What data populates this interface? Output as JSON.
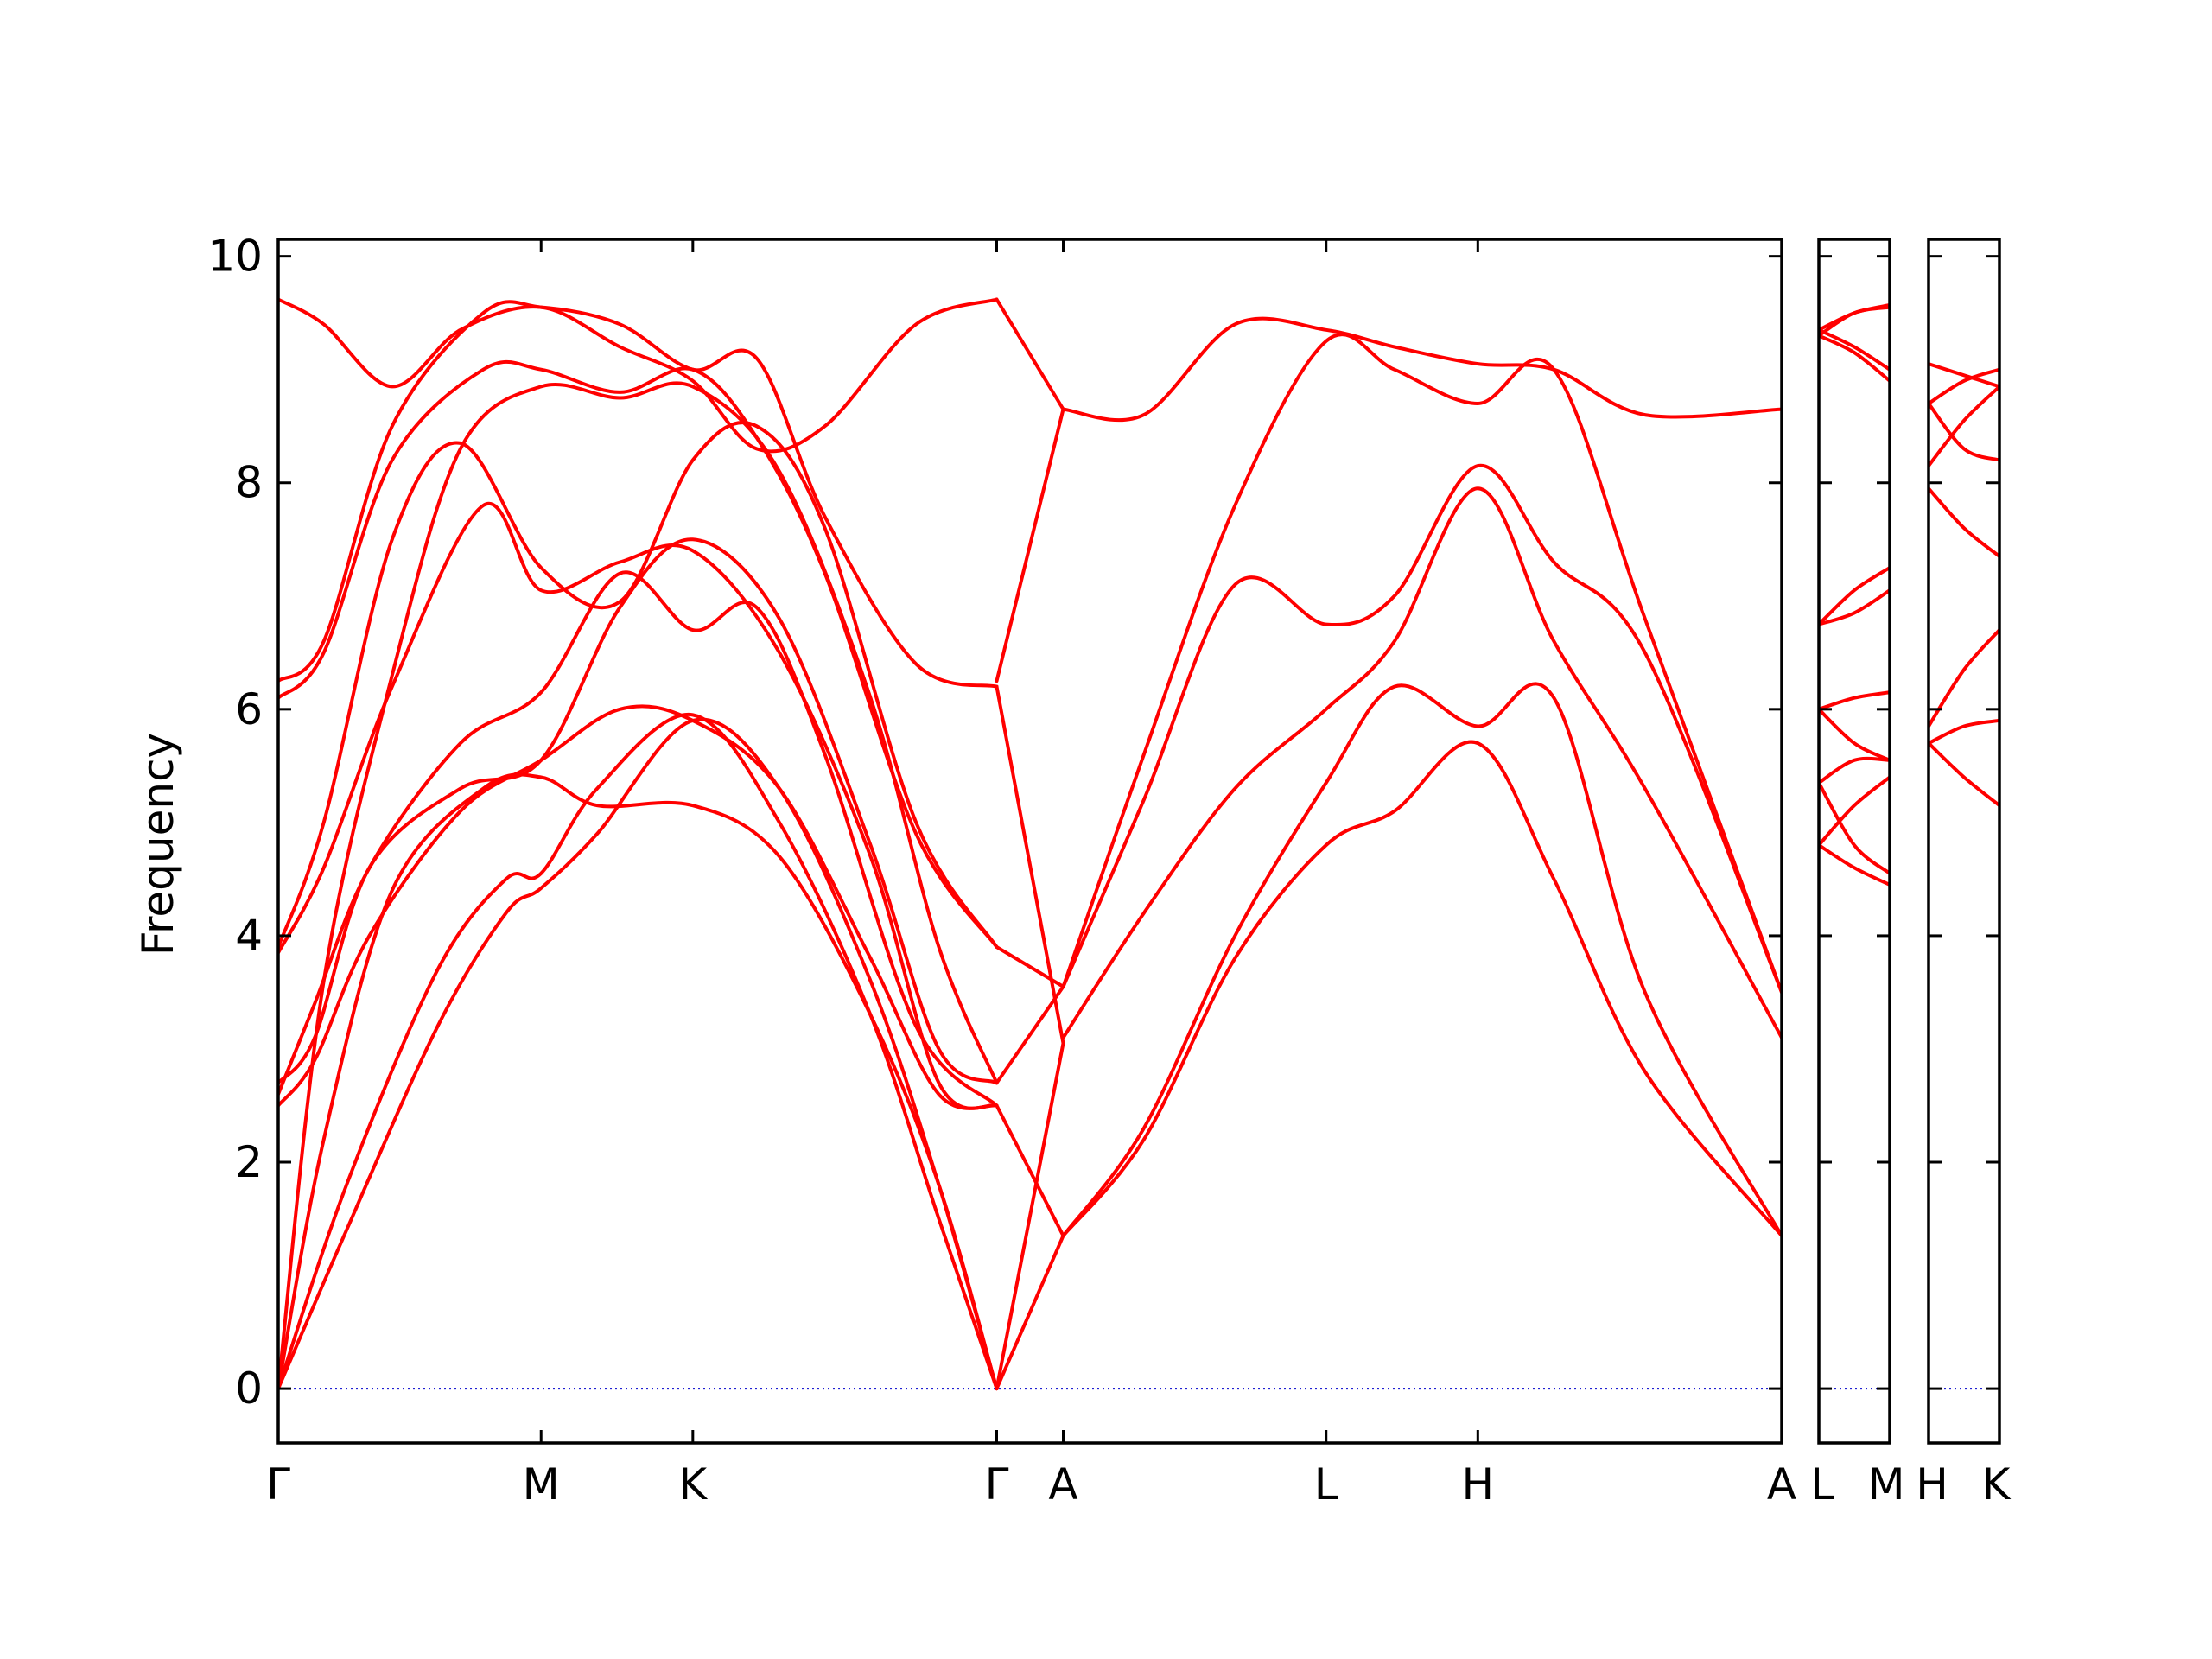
{
  "chart_data": {
    "type": "line",
    "ylabel": "Frequency",
    "ylim": [
      -0.48,
      10.15
    ],
    "yticks": [
      "0",
      "2",
      "4",
      "6",
      "8",
      "10"
    ],
    "colors": {
      "bands": "#ff0000",
      "zero_line": "#0000cc",
      "frame": "#000000"
    },
    "panels": [
      {
        "path": [
          "Γ",
          "M",
          "K",
          "Γ",
          "A",
          "L",
          "H",
          "A"
        ],
        "labels": [
          "Γ",
          "M",
          "K",
          "Γ",
          "A",
          "L",
          "H",
          "A"
        ],
        "x_ticks": [
          0,
          0.577,
          0.91,
          1.577,
          1.723,
          2.3,
          2.633,
          3.3
        ],
        "xlim": [
          0,
          3.3
        ],
        "series": [
          {
            "x": [
              0,
              0.15,
              0.35,
              0.5,
              0.577,
              0.7,
              0.91,
              1.1,
              1.3,
              1.45,
              1.577
            ],
            "values": [
              0,
              1.4,
              3.2,
              4.2,
              4.42,
              4.9,
              5.9,
              5.3,
              3.6,
              1.8,
              0
            ]
          },
          {
            "x": [
              0,
              0.15,
              0.35,
              0.5,
              0.577,
              0.7,
              0.91,
              1.1,
              1.3,
              1.45,
              1.577
            ],
            "values": [
              0,
              1.8,
              3.7,
              4.5,
              4.55,
              5.3,
              5.95,
              5.0,
              3.3,
              1.5,
              0
            ]
          },
          {
            "x": [
              0,
              0.1,
              0.25,
              0.45,
              0.577,
              0.7,
              0.91,
              1.1,
              1.3,
              1.45,
              1.577
            ],
            "values": [
              0,
              2.2,
              4.4,
              5.3,
              5.4,
              5.15,
              5.15,
              4.7,
              3.3,
              1.8,
              0
            ]
          },
          {
            "x": [
              0,
              0.08,
              0.2,
              0.4,
              0.577,
              0.75,
              0.91,
              1.1,
              1.3,
              1.45,
              1.577
            ],
            "values": [
              2.5,
              2.9,
              4.0,
              5.1,
              5.55,
              6.0,
              5.9,
              5.3,
              3.8,
              2.6,
              2.5
            ]
          },
          {
            "x": [
              0,
              0.08,
              0.2,
              0.4,
              0.577,
              0.75,
              0.91,
              1.1,
              1.3,
              1.45,
              1.577
            ],
            "values": [
              2.7,
              3.1,
              4.6,
              5.3,
              5.55,
              6.9,
              7.5,
              6.8,
              4.8,
              3.0,
              2.7
            ]
          },
          {
            "x": [
              0,
              0.08,
              0.2,
              0.4,
              0.577,
              0.75,
              0.91,
              1.05,
              1.2,
              1.4,
              1.577
            ],
            "values": [
              2.6,
              3.4,
              4.6,
              5.7,
              6.15,
              7.2,
              6.7,
              6.9,
              5.6,
              3.2,
              2.5
            ]
          },
          {
            "x": [
              0,
              0.1,
              0.25,
              0.4,
              0.577,
              0.75,
              0.91,
              1.1,
              1.3,
              1.45,
              1.577
            ],
            "values": [
              0,
              3.6,
              6.3,
              8.3,
              8.85,
              8.75,
              8.85,
              8.1,
              6.1,
              3.9,
              2.7
            ]
          },
          {
            "x": [
              0,
              0.1,
              0.25,
              0.45,
              0.577,
              0.75,
              0.91,
              1.1,
              1.3,
              1.45,
              1.577
            ],
            "values": [
              3.85,
              4.6,
              6.2,
              7.8,
              7.05,
              7.3,
              7.4,
              6.5,
              4.7,
              2.7,
              2.5
            ]
          },
          {
            "x": [
              0,
              0.1,
              0.25,
              0.4,
              0.577,
              0.75,
              0.91,
              1.05,
              1.2,
              1.4,
              1.577
            ],
            "values": [
              3.9,
              5.0,
              7.5,
              8.35,
              7.25,
              6.95,
              8.2,
              8.5,
              7.6,
              5.0,
              3.9
            ]
          },
          {
            "x": [
              0,
              0.1,
              0.25,
              0.45,
              0.577,
              0.75,
              0.91,
              1.05,
              1.2,
              1.4,
              1.577
            ],
            "values": [
              6.1,
              6.5,
              8.2,
              9.0,
              9.0,
              8.8,
              9.0,
              8.4,
              7.2,
              4.9,
              3.9
            ]
          },
          {
            "x": [
              0,
              0.1,
              0.25,
              0.45,
              0.577,
              0.75,
              0.91,
              1.05,
              1.2,
              1.4,
              1.577
            ],
            "values": [
              6.25,
              6.6,
              8.5,
              9.5,
              9.55,
              9.4,
              9.0,
              9.1,
              7.7,
              6.4,
              6.2
            ]
          },
          {
            "x": [
              0,
              0.1,
              0.25,
              0.4,
              0.577,
              0.75,
              0.91,
              1.05,
              1.2,
              1.4,
              1.577
            ],
            "values": [
              9.62,
              9.4,
              8.85,
              9.35,
              9.55,
              9.2,
              8.9,
              8.3,
              8.5,
              9.4,
              9.62
            ]
          },
          {
            "x": [
              1.577,
              1.723
            ],
            "values": [
              0,
              1.35
            ]
          },
          {
            "x": [
              1.577,
              1.723
            ],
            "values": [
              0,
              3.05
            ]
          },
          {
            "x": [
              1.577,
              1.723
            ],
            "values": [
              2.5,
              1.35
            ]
          },
          {
            "x": [
              1.577,
              1.723
            ],
            "values": [
              2.7,
              3.55
            ]
          },
          {
            "x": [
              1.577,
              1.723
            ],
            "values": [
              3.9,
              3.55
            ]
          },
          {
            "x": [
              1.577,
              1.723
            ],
            "values": [
              6.2,
              3.05
            ]
          },
          {
            "x": [
              1.577,
              1.723
            ],
            "values": [
              6.25,
              8.65
            ]
          },
          {
            "x": [
              1.577,
              1.723
            ],
            "values": [
              9.62,
              8.65
            ]
          },
          {
            "x": [
              1.723,
              1.9,
              2.1,
              2.3,
              2.45,
              2.633,
              2.8,
              3.0,
              3.3
            ],
            "values": [
              1.35,
              2.2,
              3.8,
              4.8,
              5.1,
              5.7,
              4.5,
              2.8,
              1.35
            ]
          },
          {
            "x": [
              1.723,
              1.9,
              2.1,
              2.3,
              2.45,
              2.633,
              2.8,
              3.0,
              3.3
            ],
            "values": [
              1.35,
              2.3,
              4.0,
              5.35,
              6.2,
              5.85,
              6.1,
              3.5,
              1.35
            ]
          },
          {
            "x": [
              1.723,
              1.9,
              2.1,
              2.3,
              2.45,
              2.633,
              2.8,
              3.0,
              3.3
            ],
            "values": [
              3.1,
              4.2,
              5.3,
              6.0,
              6.6,
              7.95,
              6.6,
              5.3,
              3.1
            ]
          },
          {
            "x": [
              1.723,
              1.9,
              2.1,
              2.3,
              2.45,
              2.633,
              2.8,
              3.0,
              3.3
            ],
            "values": [
              3.55,
              5.2,
              7.1,
              6.75,
              7.0,
              8.15,
              7.3,
              6.5,
              3.5
            ]
          },
          {
            "x": [
              1.723,
              1.9,
              2.1,
              2.3,
              2.45,
              2.633,
              2.8,
              3.0,
              3.3
            ],
            "values": [
              3.55,
              5.6,
              7.8,
              9.25,
              9.0,
              8.7,
              9.0,
              6.8,
              3.5
            ]
          },
          {
            "x": [
              1.723,
              1.9,
              2.1,
              2.3,
              2.45,
              2.633,
              2.8,
              3.0,
              3.3
            ],
            "values": [
              8.65,
              8.6,
              9.4,
              9.35,
              9.2,
              9.05,
              9.0,
              8.6,
              8.65
            ]
          }
        ]
      },
      {
        "path": [
          "L",
          "M"
        ],
        "labels": [
          "L",
          "M"
        ],
        "x_ticks": [
          0,
          0.5
        ],
        "xlim": [
          0,
          0.5
        ],
        "series": [
          {
            "x": [
              0,
              0.25,
              0.5
            ],
            "values": [
              4.8,
              4.6,
              4.45
            ]
          },
          {
            "x": [
              0,
              0.25,
              0.5
            ],
            "values": [
              5.35,
              4.8,
              4.55
            ]
          },
          {
            "x": [
              0,
              0.25,
              0.5
            ],
            "values": [
              4.8,
              5.15,
              5.4
            ]
          },
          {
            "x": [
              0,
              0.25,
              0.5
            ],
            "values": [
              6.0,
              5.7,
              5.55
            ]
          },
          {
            "x": [
              0,
              0.25,
              0.5
            ],
            "values": [
              6.0,
              6.1,
              6.15
            ]
          },
          {
            "x": [
              0,
              0.25,
              0.5
            ],
            "values": [
              5.35,
              5.55,
              5.55
            ]
          },
          {
            "x": [
              0,
              0.25,
              0.5
            ],
            "values": [
              6.75,
              7.05,
              7.25
            ]
          },
          {
            "x": [
              0,
              0.25,
              0.5
            ],
            "values": [
              6.75,
              6.85,
              7.05
            ]
          },
          {
            "x": [
              0,
              0.25,
              0.5
            ],
            "values": [
              9.3,
              9.15,
              8.9
            ]
          },
          {
            "x": [
              0,
              0.25,
              0.5
            ],
            "values": [
              9.35,
              9.2,
              9.0
            ]
          },
          {
            "x": [
              0,
              0.25,
              0.5
            ],
            "values": [
              9.3,
              9.5,
              9.55
            ]
          },
          {
            "x": [
              0,
              0.25,
              0.5
            ],
            "values": [
              9.35,
              9.5,
              9.57
            ]
          }
        ]
      },
      {
        "path": [
          "H",
          "K"
        ],
        "labels": [
          "H",
          "K"
        ],
        "x_ticks": [
          0,
          0.5
        ],
        "xlim": [
          0,
          0.5
        ],
        "series": [
          {
            "x": [
              0,
              0.25,
              0.5
            ],
            "values": [
              5.7,
              5.4,
              5.15
            ]
          },
          {
            "x": [
              0,
              0.25,
              0.5
            ],
            "values": [
              5.85,
              6.35,
              6.7
            ]
          },
          {
            "x": [
              0,
              0.25,
              0.5
            ],
            "values": [
              5.7,
              5.85,
              5.9
            ]
          },
          {
            "x": [
              0,
              0.25,
              0.5
            ],
            "values": [
              8.7,
              8.3,
              8.2
            ]
          },
          {
            "x": [
              0,
              0.25,
              0.5
            ],
            "values": [
              8.15,
              8.55,
              8.85
            ]
          },
          {
            "x": [
              0,
              0.25,
              0.5
            ],
            "values": [
              7.95,
              7.6,
              7.35
            ]
          },
          {
            "x": [
              0,
              0.25,
              0.5
            ],
            "values": [
              9.05,
              8.95,
              8.85
            ]
          },
          {
            "x": [
              0,
              0.25,
              0.5
            ],
            "values": [
              8.7,
              8.9,
              9.0
            ]
          }
        ]
      }
    ]
  }
}
